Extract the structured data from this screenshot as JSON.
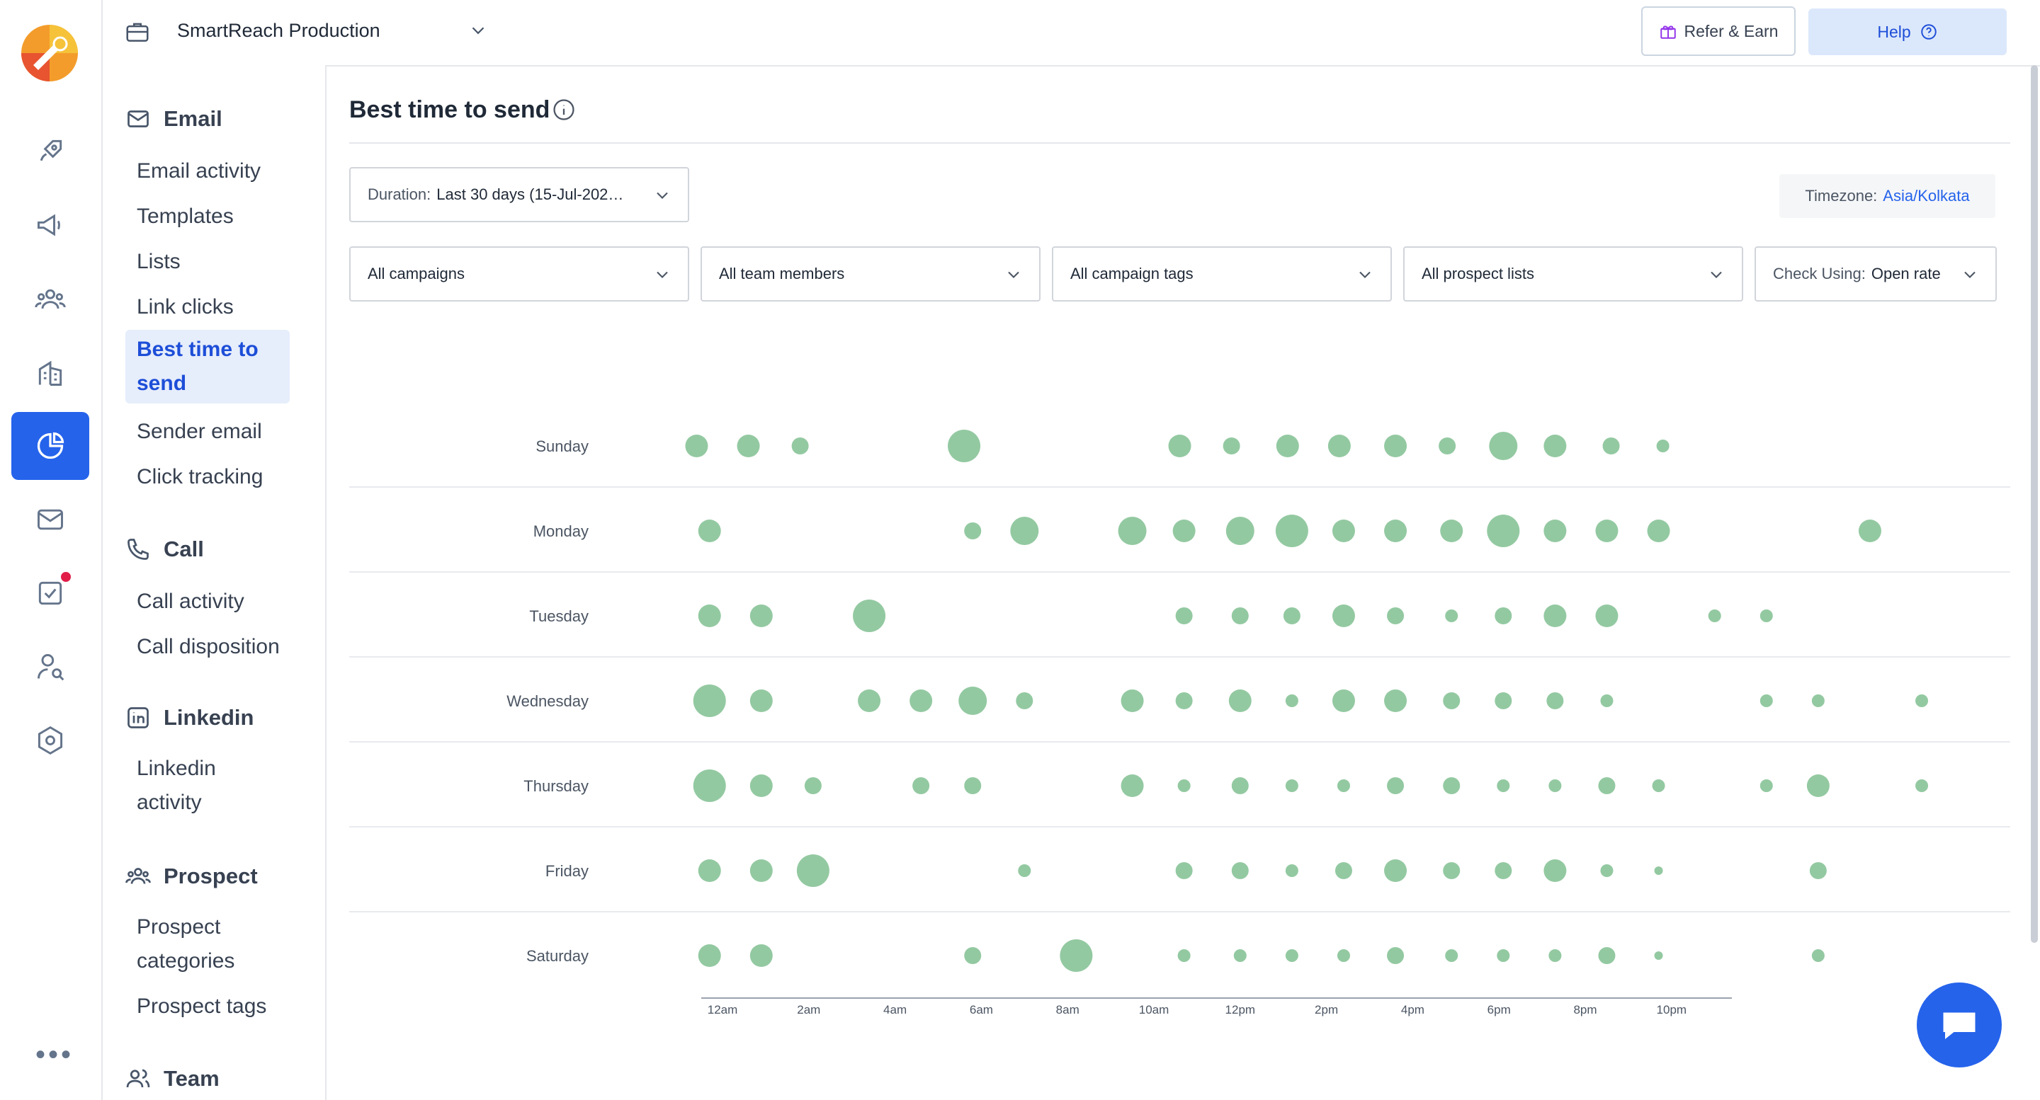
{
  "workspace": {
    "name": "SmartReach Production"
  },
  "topbar": {
    "refer_label": "Refer & Earn",
    "help_label": "Help"
  },
  "subnav": {
    "sections": [
      {
        "title": "Email",
        "icon": "mail-icon",
        "items": [
          "Email activity",
          "Templates",
          "Lists",
          "Link clicks",
          "Best time to send",
          "Sender email",
          "Click tracking"
        ]
      },
      {
        "title": "Call",
        "icon": "phone-icon",
        "items": [
          "Call activity",
          "Call disposition"
        ]
      },
      {
        "title": "Linkedin",
        "icon": "linkedin-icon",
        "items": [
          "Linkedin activity"
        ]
      },
      {
        "title": "Prospect",
        "icon": "users-icon",
        "items": [
          "Prospect categories",
          "Prospect tags"
        ]
      },
      {
        "title": "Team",
        "icon": "team-icon",
        "items": []
      }
    ],
    "active_item": "Best time to send"
  },
  "page": {
    "title": "Best time to send"
  },
  "filters": {
    "duration_label": "Duration:",
    "duration_value": "Last 30 days (15-Jul-202…",
    "timezone_label": "Timezone:",
    "timezone_value": "Asia/Kolkata",
    "campaigns": "All campaigns",
    "team_members": "All team members",
    "campaign_tags": "All campaign tags",
    "prospect_lists": "All prospect lists",
    "check_label": "Check Using:",
    "check_value": "Open rate"
  },
  "colors": {
    "accent": "#2563eb",
    "bubble": "#93c9a1"
  },
  "chart_data": {
    "type": "scatter",
    "encoding": "bubble size = open rate",
    "days": [
      "Sunday",
      "Monday",
      "Tuesday",
      "Wednesday",
      "Thursday",
      "Friday",
      "Saturday"
    ],
    "x_ticks": [
      "12am",
      "2am",
      "4am",
      "6am",
      "8am",
      "10am",
      "12pm",
      "2pm",
      "4pm",
      "6pm",
      "8pm",
      "10pm"
    ],
    "points": {
      "Sunday": [
        [
          -0.6,
          1
        ],
        [
          0.6,
          1
        ],
        [
          1.8,
          0
        ],
        [
          5.6,
          3
        ],
        [
          10.6,
          1
        ],
        [
          11.8,
          0
        ],
        [
          13.1,
          1
        ],
        [
          14.3,
          1
        ],
        [
          15.6,
          1
        ],
        [
          16.8,
          0
        ],
        [
          18.1,
          2
        ],
        [
          19.3,
          1
        ],
        [
          20.6,
          0
        ],
        [
          21.8,
          -1
        ]
      ],
      "Monday": [
        [
          -0.3,
          1
        ],
        [
          5.8,
          0
        ],
        [
          7.0,
          2
        ],
        [
          9.5,
          2
        ],
        [
          10.7,
          1
        ],
        [
          12.0,
          2
        ],
        [
          13.2,
          3
        ],
        [
          14.4,
          1
        ],
        [
          15.6,
          1
        ],
        [
          16.9,
          1
        ],
        [
          18.1,
          3
        ],
        [
          19.3,
          1
        ],
        [
          20.5,
          1
        ],
        [
          21.7,
          1
        ],
        [
          26.6,
          1
        ]
      ],
      "Tuesday": [
        [
          -0.3,
          1
        ],
        [
          0.9,
          1
        ],
        [
          3.4,
          3
        ],
        [
          10.7,
          0
        ],
        [
          12.0,
          0
        ],
        [
          13.2,
          0
        ],
        [
          14.4,
          1
        ],
        [
          15.6,
          0
        ],
        [
          16.9,
          -1
        ],
        [
          18.1,
          0
        ],
        [
          19.3,
          1
        ],
        [
          20.5,
          1
        ],
        [
          23.0,
          -1
        ],
        [
          24.2,
          -1
        ]
      ],
      "Wednesday": [
        [
          -0.3,
          3
        ],
        [
          0.9,
          1
        ],
        [
          3.4,
          1
        ],
        [
          4.6,
          1
        ],
        [
          5.8,
          2
        ],
        [
          7.0,
          0
        ],
        [
          9.5,
          1
        ],
        [
          10.7,
          0
        ],
        [
          12.0,
          1
        ],
        [
          13.2,
          -1
        ],
        [
          14.4,
          1
        ],
        [
          15.6,
          1
        ],
        [
          16.9,
          0
        ],
        [
          18.1,
          0
        ],
        [
          19.3,
          0
        ],
        [
          20.5,
          -1
        ],
        [
          24.2,
          -1
        ],
        [
          25.4,
          -1
        ],
        [
          27.8,
          -1
        ]
      ],
      "Thursday": [
        [
          -0.3,
          3
        ],
        [
          0.9,
          1
        ],
        [
          2.1,
          0
        ],
        [
          4.6,
          0
        ],
        [
          5.8,
          0
        ],
        [
          9.5,
          1
        ],
        [
          10.7,
          -1
        ],
        [
          12.0,
          0
        ],
        [
          13.2,
          -1
        ],
        [
          14.4,
          -1
        ],
        [
          15.6,
          0
        ],
        [
          16.9,
          0
        ],
        [
          18.1,
          -1
        ],
        [
          19.3,
          -1
        ],
        [
          20.5,
          0
        ],
        [
          21.7,
          -1
        ],
        [
          24.2,
          -1
        ],
        [
          25.4,
          1
        ],
        [
          27.8,
          -1
        ]
      ],
      "Friday": [
        [
          -0.3,
          1
        ],
        [
          0.9,
          1
        ],
        [
          2.1,
          3
        ],
        [
          7.0,
          -1
        ],
        [
          10.7,
          0
        ],
        [
          12.0,
          0
        ],
        [
          13.2,
          -1
        ],
        [
          14.4,
          0
        ],
        [
          15.6,
          1
        ],
        [
          16.9,
          0
        ],
        [
          18.1,
          0
        ],
        [
          19.3,
          1
        ],
        [
          20.5,
          -1
        ],
        [
          21.7,
          -2
        ],
        [
          25.4,
          0
        ]
      ],
      "Saturday": [
        [
          -0.3,
          1
        ],
        [
          0.9,
          1
        ],
        [
          5.8,
          0
        ],
        [
          8.2,
          3
        ],
        [
          10.7,
          -1
        ],
        [
          12.0,
          -1
        ],
        [
          13.2,
          -1
        ],
        [
          14.4,
          -1
        ],
        [
          15.6,
          0
        ],
        [
          16.9,
          -1
        ],
        [
          18.1,
          -1
        ],
        [
          19.3,
          -1
        ],
        [
          20.5,
          0
        ],
        [
          21.7,
          -2
        ],
        [
          25.4,
          -1
        ]
      ]
    }
  }
}
